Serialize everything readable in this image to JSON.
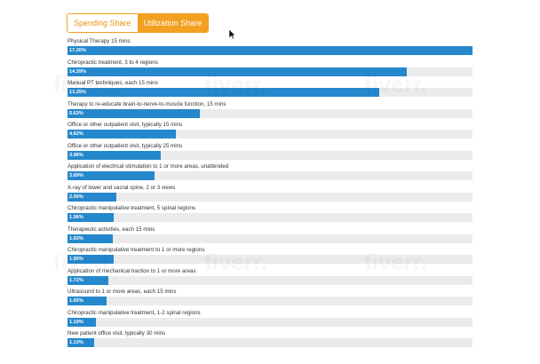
{
  "tabs": [
    {
      "label": "Spending Share",
      "active": false
    },
    {
      "label": "Utilization Share",
      "active": true
    }
  ],
  "watermark_text": "fiverr.",
  "bar_color": "#2588cc",
  "track_color": "#ebebeb",
  "accent_color": "#f1a020",
  "chart_data": {
    "type": "bar",
    "orientation": "horizontal",
    "xlim": [
      0,
      17.2
    ],
    "rows": [
      {
        "label": "Physical Therapy 15 mins",
        "value": 17.2,
        "value_label": "17.20%"
      },
      {
        "label": "Chiropractic treatment, 3 to 4 regions",
        "value": 14.39,
        "value_label": "14.39%"
      },
      {
        "label": "Manual PT techniques, each 15 mins",
        "value": 13.25,
        "value_label": "13.25%"
      },
      {
        "label": "Therapy to re-educate brain-to-nerve-to-muscle function, 15 mins",
        "value": 5.63,
        "value_label": "5.63%"
      },
      {
        "label": "Office or other outpatient visit, typically 15 mins",
        "value": 4.62,
        "value_label": "4.62%"
      },
      {
        "label": "Office or other outpatient visit, typically 25 mins",
        "value": 3.96,
        "value_label": "3.96%"
      },
      {
        "label": "Application of electrical stimulation to 1 or more areas, unattended",
        "value": 3.69,
        "value_label": "3.69%"
      },
      {
        "label": "X-ray of lower and sacral spine, 2 or 3 views",
        "value": 2.06,
        "value_label": "2.06%"
      },
      {
        "label": "Chiropractic manipulative treatment, 5 spinal regions",
        "value": 1.96,
        "value_label": "1.96%"
      },
      {
        "label": "Therapeutic activities, each 15 mins",
        "value": 1.93,
        "value_label": "1.93%"
      },
      {
        "label": "Chiropractic manipulative treatment to 1 or more regions",
        "value": 1.95,
        "value_label": "1.95%"
      },
      {
        "label": "Application of mechanical traction to 1 or more areas",
        "value": 1.72,
        "value_label": "1.72%"
      },
      {
        "label": "Ultrasound to 1 or more areas, each 15 mins",
        "value": 1.65,
        "value_label": "1.65%"
      },
      {
        "label": "Chiropractic manipulative treatment, 1-2 spinal regions",
        "value": 1.19,
        "value_label": "1.19%"
      },
      {
        "label": "New patient office visit, typically 30 mins",
        "value": 1.13,
        "value_label": "1.13%"
      }
    ]
  }
}
